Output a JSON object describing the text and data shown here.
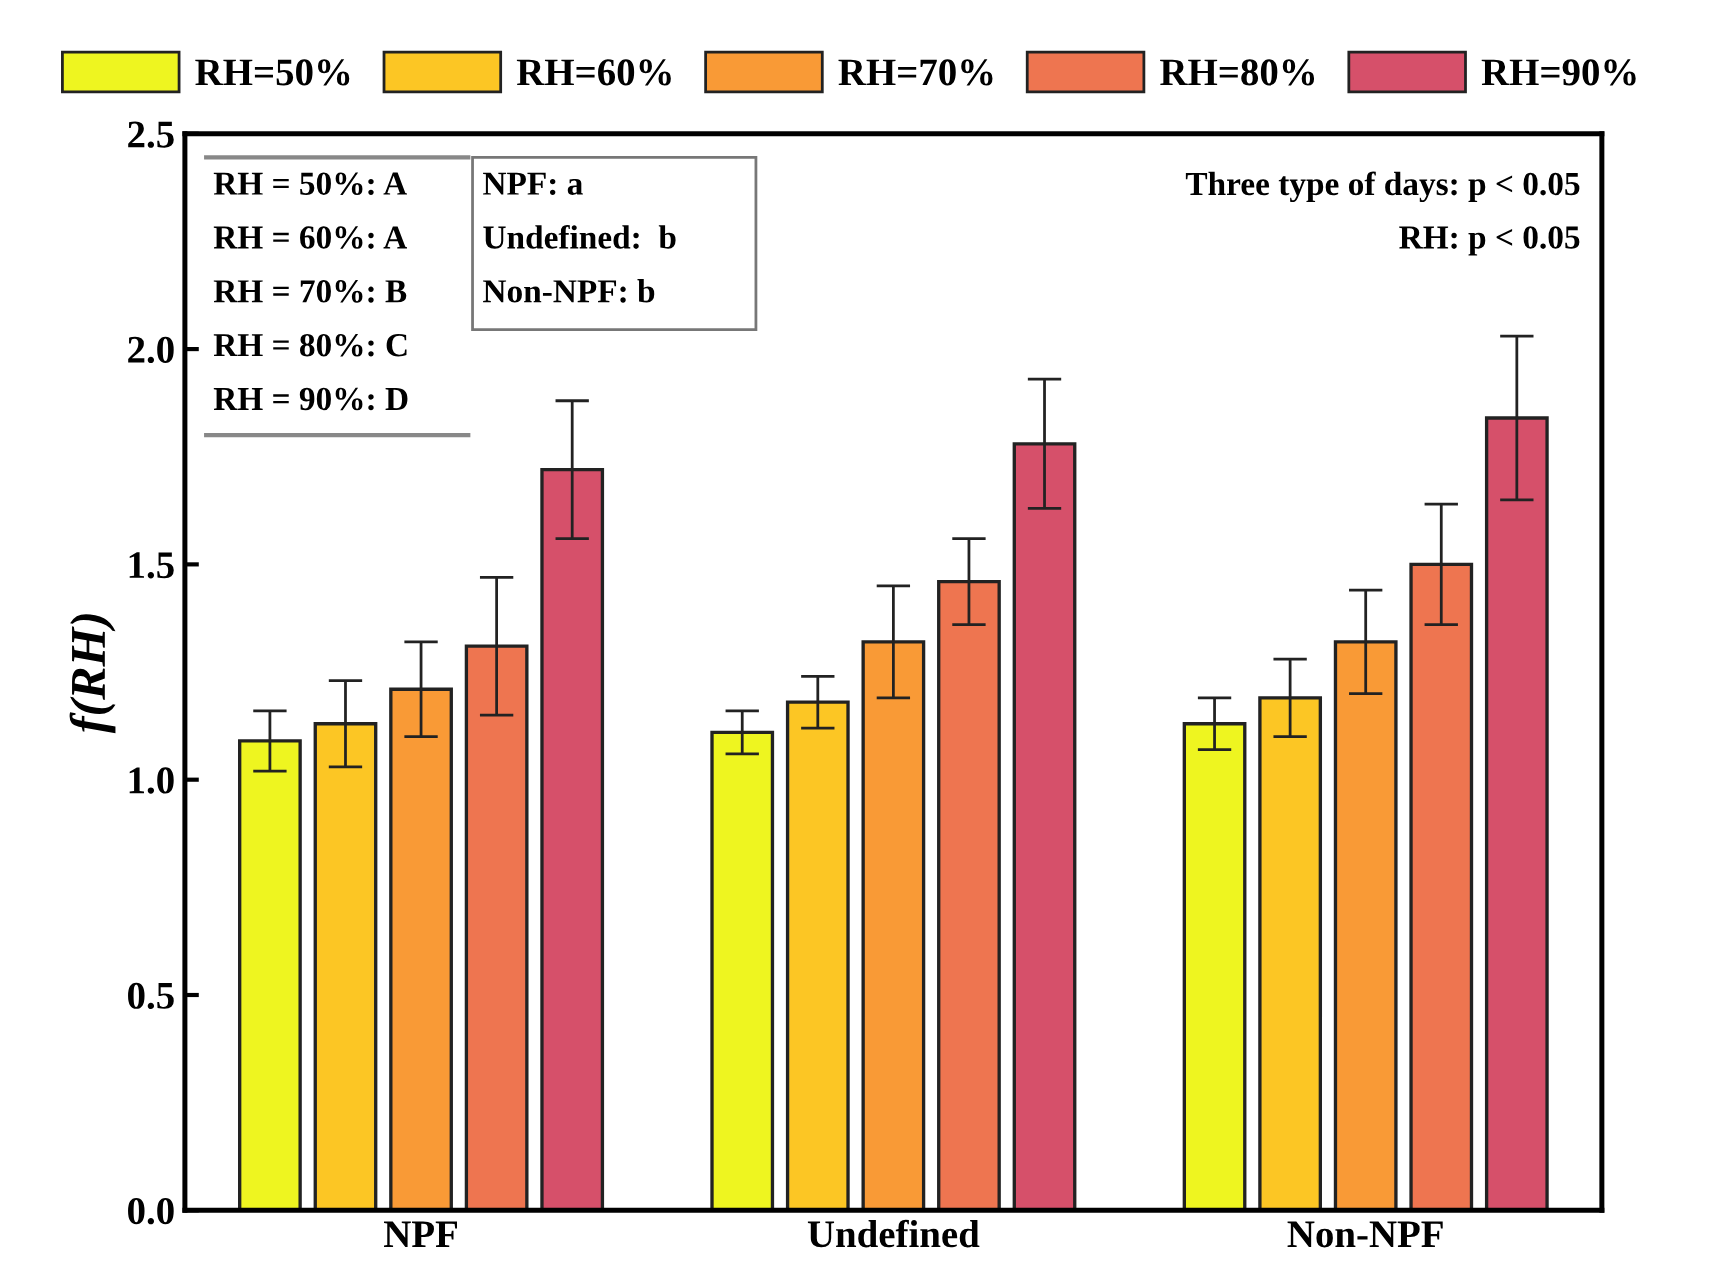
{
  "chart_data": {
    "type": "bar",
    "ylabel": "f(RH)",
    "categories": [
      "NPF",
      "Undefined",
      "Non-NPF"
    ],
    "series": [
      {
        "name": "RH=50%",
        "color": "#eef520",
        "values": [
          1.09,
          1.11,
          1.13
        ],
        "errors": [
          0.07,
          0.05,
          0.06
        ]
      },
      {
        "name": "RH=60%",
        "color": "#fcc624",
        "values": [
          1.13,
          1.18,
          1.19
        ],
        "errors": [
          0.1,
          0.06,
          0.09
        ]
      },
      {
        "name": "RH=70%",
        "color": "#f99a36",
        "values": [
          1.21,
          1.32,
          1.32
        ],
        "errors": [
          0.11,
          0.13,
          0.12
        ]
      },
      {
        "name": "RH=80%",
        "color": "#ee7550",
        "values": [
          1.31,
          1.46,
          1.5
        ],
        "errors": [
          0.16,
          0.1,
          0.14
        ]
      },
      {
        "name": "RH=90%",
        "color": "#d6506a",
        "values": [
          1.72,
          1.78,
          1.84
        ],
        "errors": [
          0.16,
          0.15,
          0.19
        ]
      }
    ],
    "ylim": [
      0,
      2.5
    ],
    "yticks": [
      {
        "value": 0,
        "label": "0.0"
      },
      {
        "value": 0.5,
        "label": "0.5"
      },
      {
        "value": 1,
        "label": "1.0"
      },
      {
        "value": 1.5,
        "label": "1.5"
      },
      {
        "value": 2,
        "label": "2.0"
      },
      {
        "value": 2.5,
        "label": "2.5"
      }
    ],
    "grid": false,
    "legend": "top",
    "annotations": [
      "RH = 50%: A",
      "RH = 60%: A",
      "RH = 70%: B",
      "RH = 80%: C",
      "RH = 90%: D",
      "NPF: a",
      "Undefined:  b",
      "Non-NPF: b",
      "Three type of days: p < 0.05",
      "RH: p < 0.05"
    ]
  }
}
